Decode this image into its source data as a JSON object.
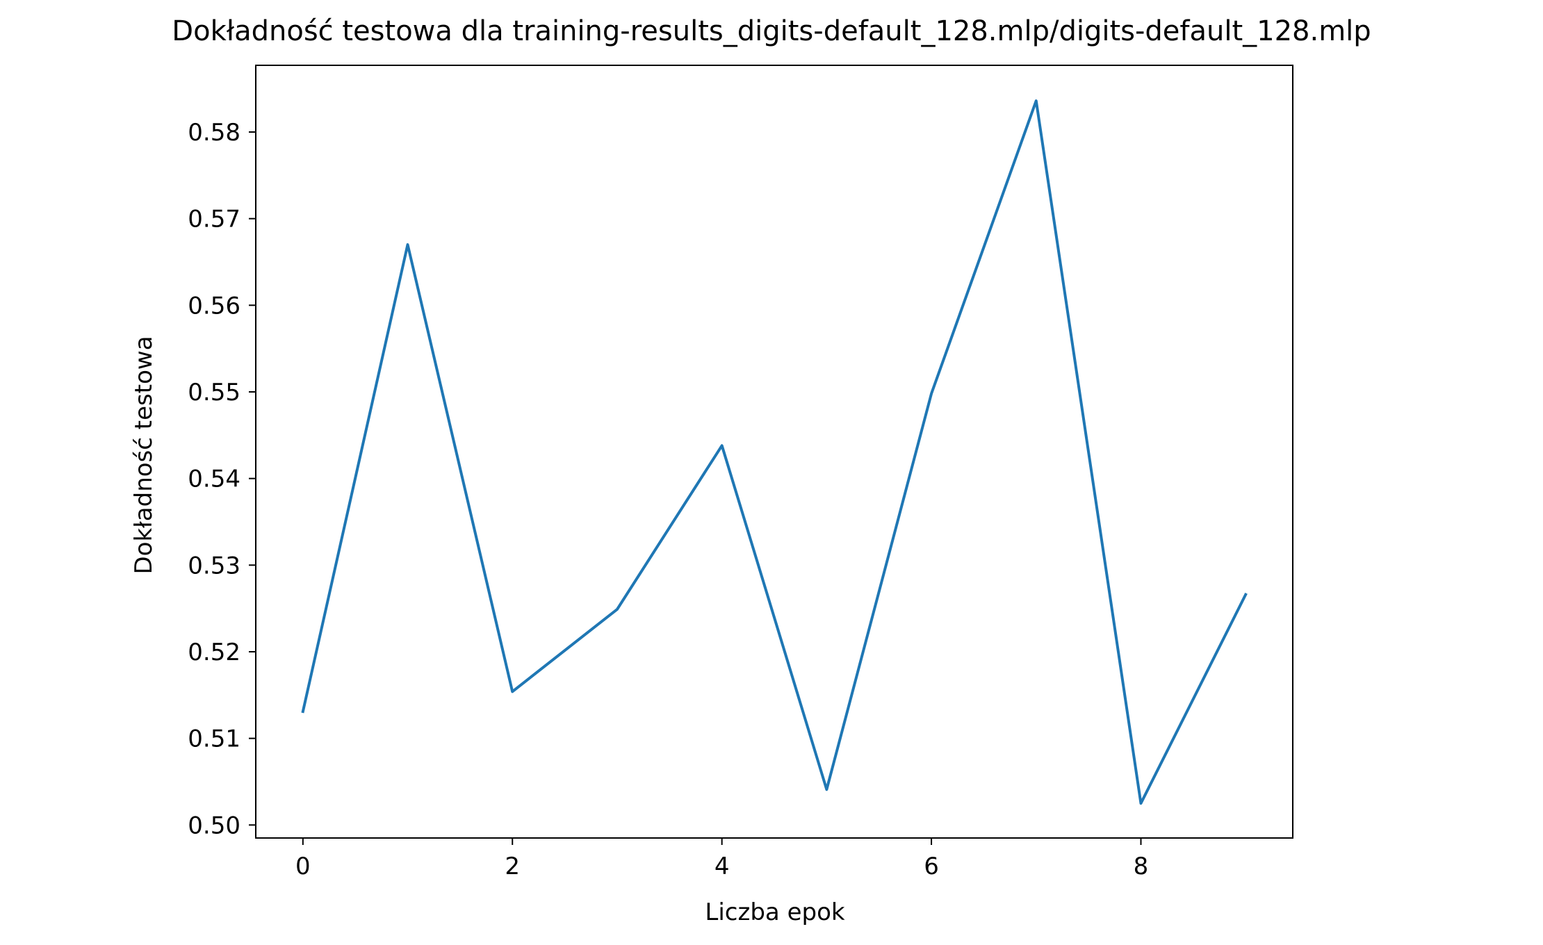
{
  "chart_data": {
    "type": "line",
    "title": "Dokładność testowa dla training-results_digits-default_128.mlp/digits-default_128.mlp",
    "xlabel": "Liczba epok",
    "ylabel": "Dokładność testowa",
    "x": [
      0,
      1,
      2,
      3,
      4,
      5,
      6,
      7,
      8,
      9
    ],
    "series": [
      {
        "values": [
          0.5131,
          0.567,
          0.5154,
          0.5249,
          0.5438,
          0.5041,
          0.5498,
          0.5836,
          0.5025,
          0.5266
        ]
      }
    ],
    "xlim": [
      -0.45,
      9.45
    ],
    "ylim": [
      0.4985,
      0.5877
    ],
    "xticks": [
      0,
      2,
      4,
      6,
      8
    ],
    "xtick_labels": [
      "0",
      "2",
      "4",
      "6",
      "8"
    ],
    "yticks": [
      0.5,
      0.51,
      0.52,
      0.53,
      0.54,
      0.55,
      0.56,
      0.57,
      0.58
    ],
    "ytick_labels": [
      "0.50",
      "0.51",
      "0.52",
      "0.53",
      "0.54",
      "0.55",
      "0.56",
      "0.57",
      "0.58"
    ],
    "grid": false,
    "legend": "none",
    "line_color": "#1f77b4"
  }
}
